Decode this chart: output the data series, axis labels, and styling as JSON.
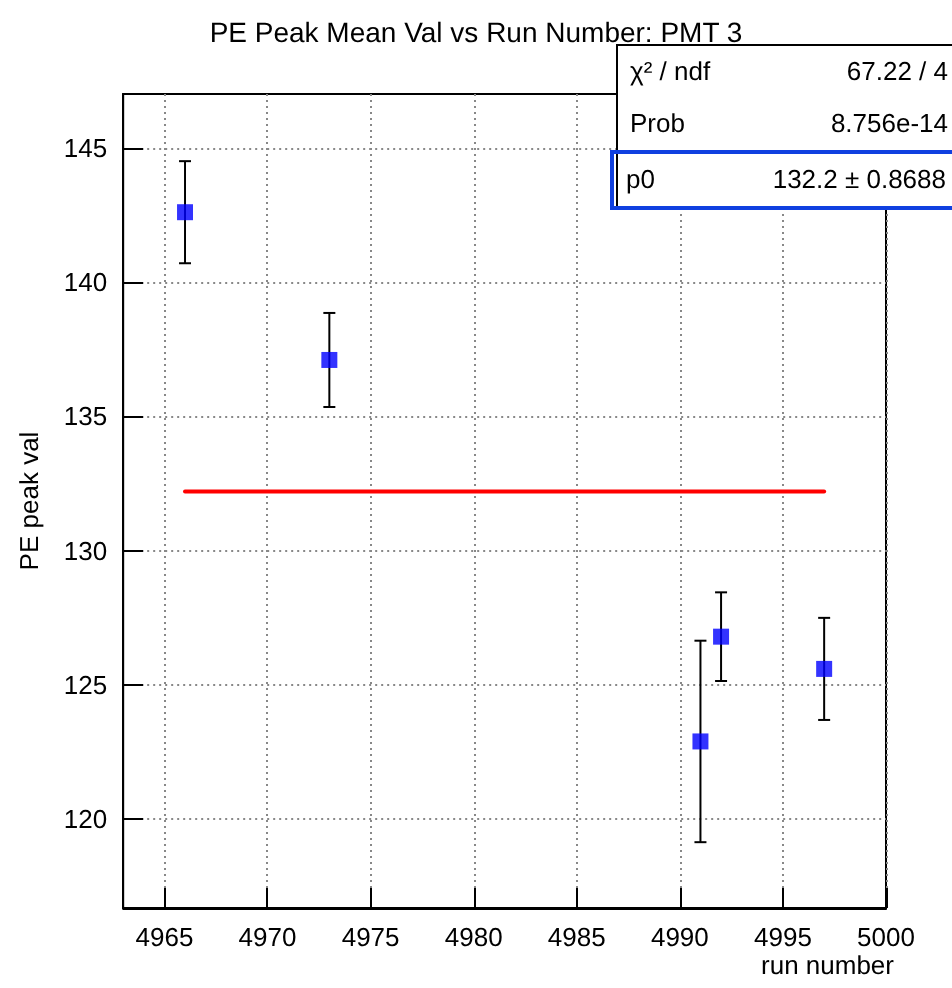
{
  "chart_data": {
    "type": "scatter",
    "title": "PE Peak Mean Val vs Run Number: PMT 3",
    "xlabel": "run number",
    "ylabel": "PE peak val",
    "annotations": [
      "χ² / ndf",
      "67.22 / 4",
      "Prob",
      "8.756e-14",
      "p0",
      "132.2 ± 0.8688"
    ],
    "series": [
      {
        "type": "scatter",
        "color": "#0000ff",
        "x": [
          4966,
          4973,
          4991,
          4992,
          4997
        ],
        "values": [
          142.6,
          137.1,
          122.9,
          126.8,
          125.6
        ],
        "errors": [
          1.9,
          1.75,
          3.75,
          1.65,
          1.9
        ],
        "marker": "square"
      },
      {
        "type": "line",
        "color": "#ff0000",
        "x": [
          4966,
          4997
        ],
        "values": [
          132.2,
          132.2
        ],
        "marker": "none"
      }
    ],
    "xlim": [
      4963,
      5000
    ],
    "xticks": [
      4965,
      4970,
      4975,
      4980,
      4985,
      4990,
      4995,
      5000
    ],
    "ylim": [
      116.7,
      147
    ],
    "yticks": [
      120,
      125,
      130,
      135,
      140,
      145
    ],
    "grid": true
  }
}
